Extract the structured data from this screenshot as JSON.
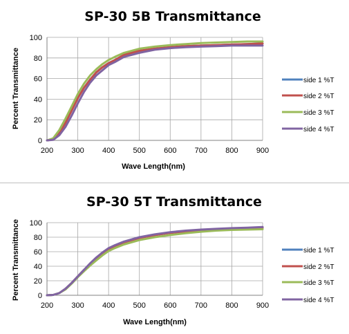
{
  "colors": {
    "side1": "#4f81bd",
    "side2": "#c0504d",
    "side3": "#9bbb59",
    "side4": "#8064a2"
  },
  "chart_data": [
    {
      "type": "line",
      "title": "SP-30 5B Transmittance",
      "xlabel": "Wave Length(nm)",
      "ylabel": "Percent Transmittance",
      "xlim": [
        200,
        900
      ],
      "ylim": [
        0,
        100
      ],
      "xticks": [
        200,
        300,
        400,
        500,
        600,
        700,
        800,
        900
      ],
      "yticks": [
        0,
        20,
        40,
        60,
        80,
        100
      ],
      "grid": true,
      "legend_position": "right",
      "x": [
        200,
        220,
        240,
        260,
        280,
        300,
        320,
        340,
        360,
        380,
        400,
        420,
        450,
        500,
        550,
        600,
        650,
        700,
        750,
        800,
        850,
        900
      ],
      "series": [
        {
          "name": "side 1 %T",
          "color_key": "side1",
          "values": [
            0,
            1,
            7,
            17,
            29,
            41,
            51,
            59,
            66,
            71,
            75,
            78,
            83,
            87,
            89,
            90.5,
            91.5,
            92,
            92.5,
            93,
            93.5,
            94
          ]
        },
        {
          "name": "side 2 %T",
          "color_key": "side2",
          "values": [
            0,
            1,
            7,
            17,
            29,
            41,
            51,
            59,
            66,
            71,
            75,
            78,
            83,
            87,
            89,
            90.5,
            91.5,
            92,
            92.5,
            93,
            93.5,
            94
          ]
        },
        {
          "name": "side 3 %T",
          "color_key": "side3",
          "values": [
            0,
            2,
            10,
            21,
            33,
            45,
            55,
            63,
            69,
            74,
            78,
            81,
            85,
            89,
            91,
            92.5,
            93.5,
            94.5,
            95,
            95.5,
            96,
            96
          ]
        },
        {
          "name": "side 4 %T",
          "color_key": "side4",
          "values": [
            0,
            0.5,
            5,
            13,
            24,
            36,
            47,
            56,
            63,
            68,
            73,
            76,
            81,
            85,
            88,
            89.5,
            90.5,
            91,
            91.5,
            92,
            92,
            92
          ]
        }
      ]
    },
    {
      "type": "line",
      "title": "SP-30 5T Transmittance",
      "xlabel": "Wave Length(nm)",
      "ylabel": "Percent Transmittance",
      "xlim": [
        200,
        900
      ],
      "ylim": [
        0,
        100
      ],
      "xticks": [
        200,
        300,
        400,
        500,
        600,
        700,
        800,
        900
      ],
      "yticks": [
        0,
        20,
        40,
        60,
        80,
        100
      ],
      "grid": true,
      "legend_position": "right",
      "x": [
        200,
        220,
        240,
        260,
        280,
        300,
        320,
        340,
        360,
        380,
        400,
        420,
        450,
        500,
        550,
        600,
        650,
        700,
        750,
        800,
        850,
        900
      ],
      "series": [
        {
          "name": "side 1 %T",
          "color_key": "side1",
          "values": [
            0,
            0.5,
            3,
            9,
            17,
            26,
            35,
            43,
            51,
            58,
            64,
            68,
            73,
            79,
            83,
            86,
            88,
            90,
            91,
            92,
            92.5,
            93
          ]
        },
        {
          "name": "side 2 %T",
          "color_key": "side2",
          "values": [
            0,
            0.5,
            3,
            9,
            17,
            26,
            35,
            43,
            51,
            58,
            64,
            68,
            73,
            79,
            83,
            86,
            88,
            90,
            91,
            92,
            92.5,
            93
          ]
        },
        {
          "name": "side 3 %T",
          "color_key": "side3",
          "values": [
            0,
            0.5,
            3,
            8,
            16,
            25,
            33,
            41,
            48,
            55,
            61,
            65,
            70,
            76,
            80,
            83,
            85.5,
            87.5,
            89,
            90,
            90.5,
            91
          ]
        },
        {
          "name": "side 4 %T",
          "color_key": "side4",
          "values": [
            0,
            0.5,
            3,
            9,
            17,
            26,
            35,
            44,
            52,
            59,
            65,
            69,
            74,
            80,
            84,
            87,
            89,
            90.5,
            91.5,
            92.5,
            93,
            94
          ]
        }
      ]
    }
  ]
}
